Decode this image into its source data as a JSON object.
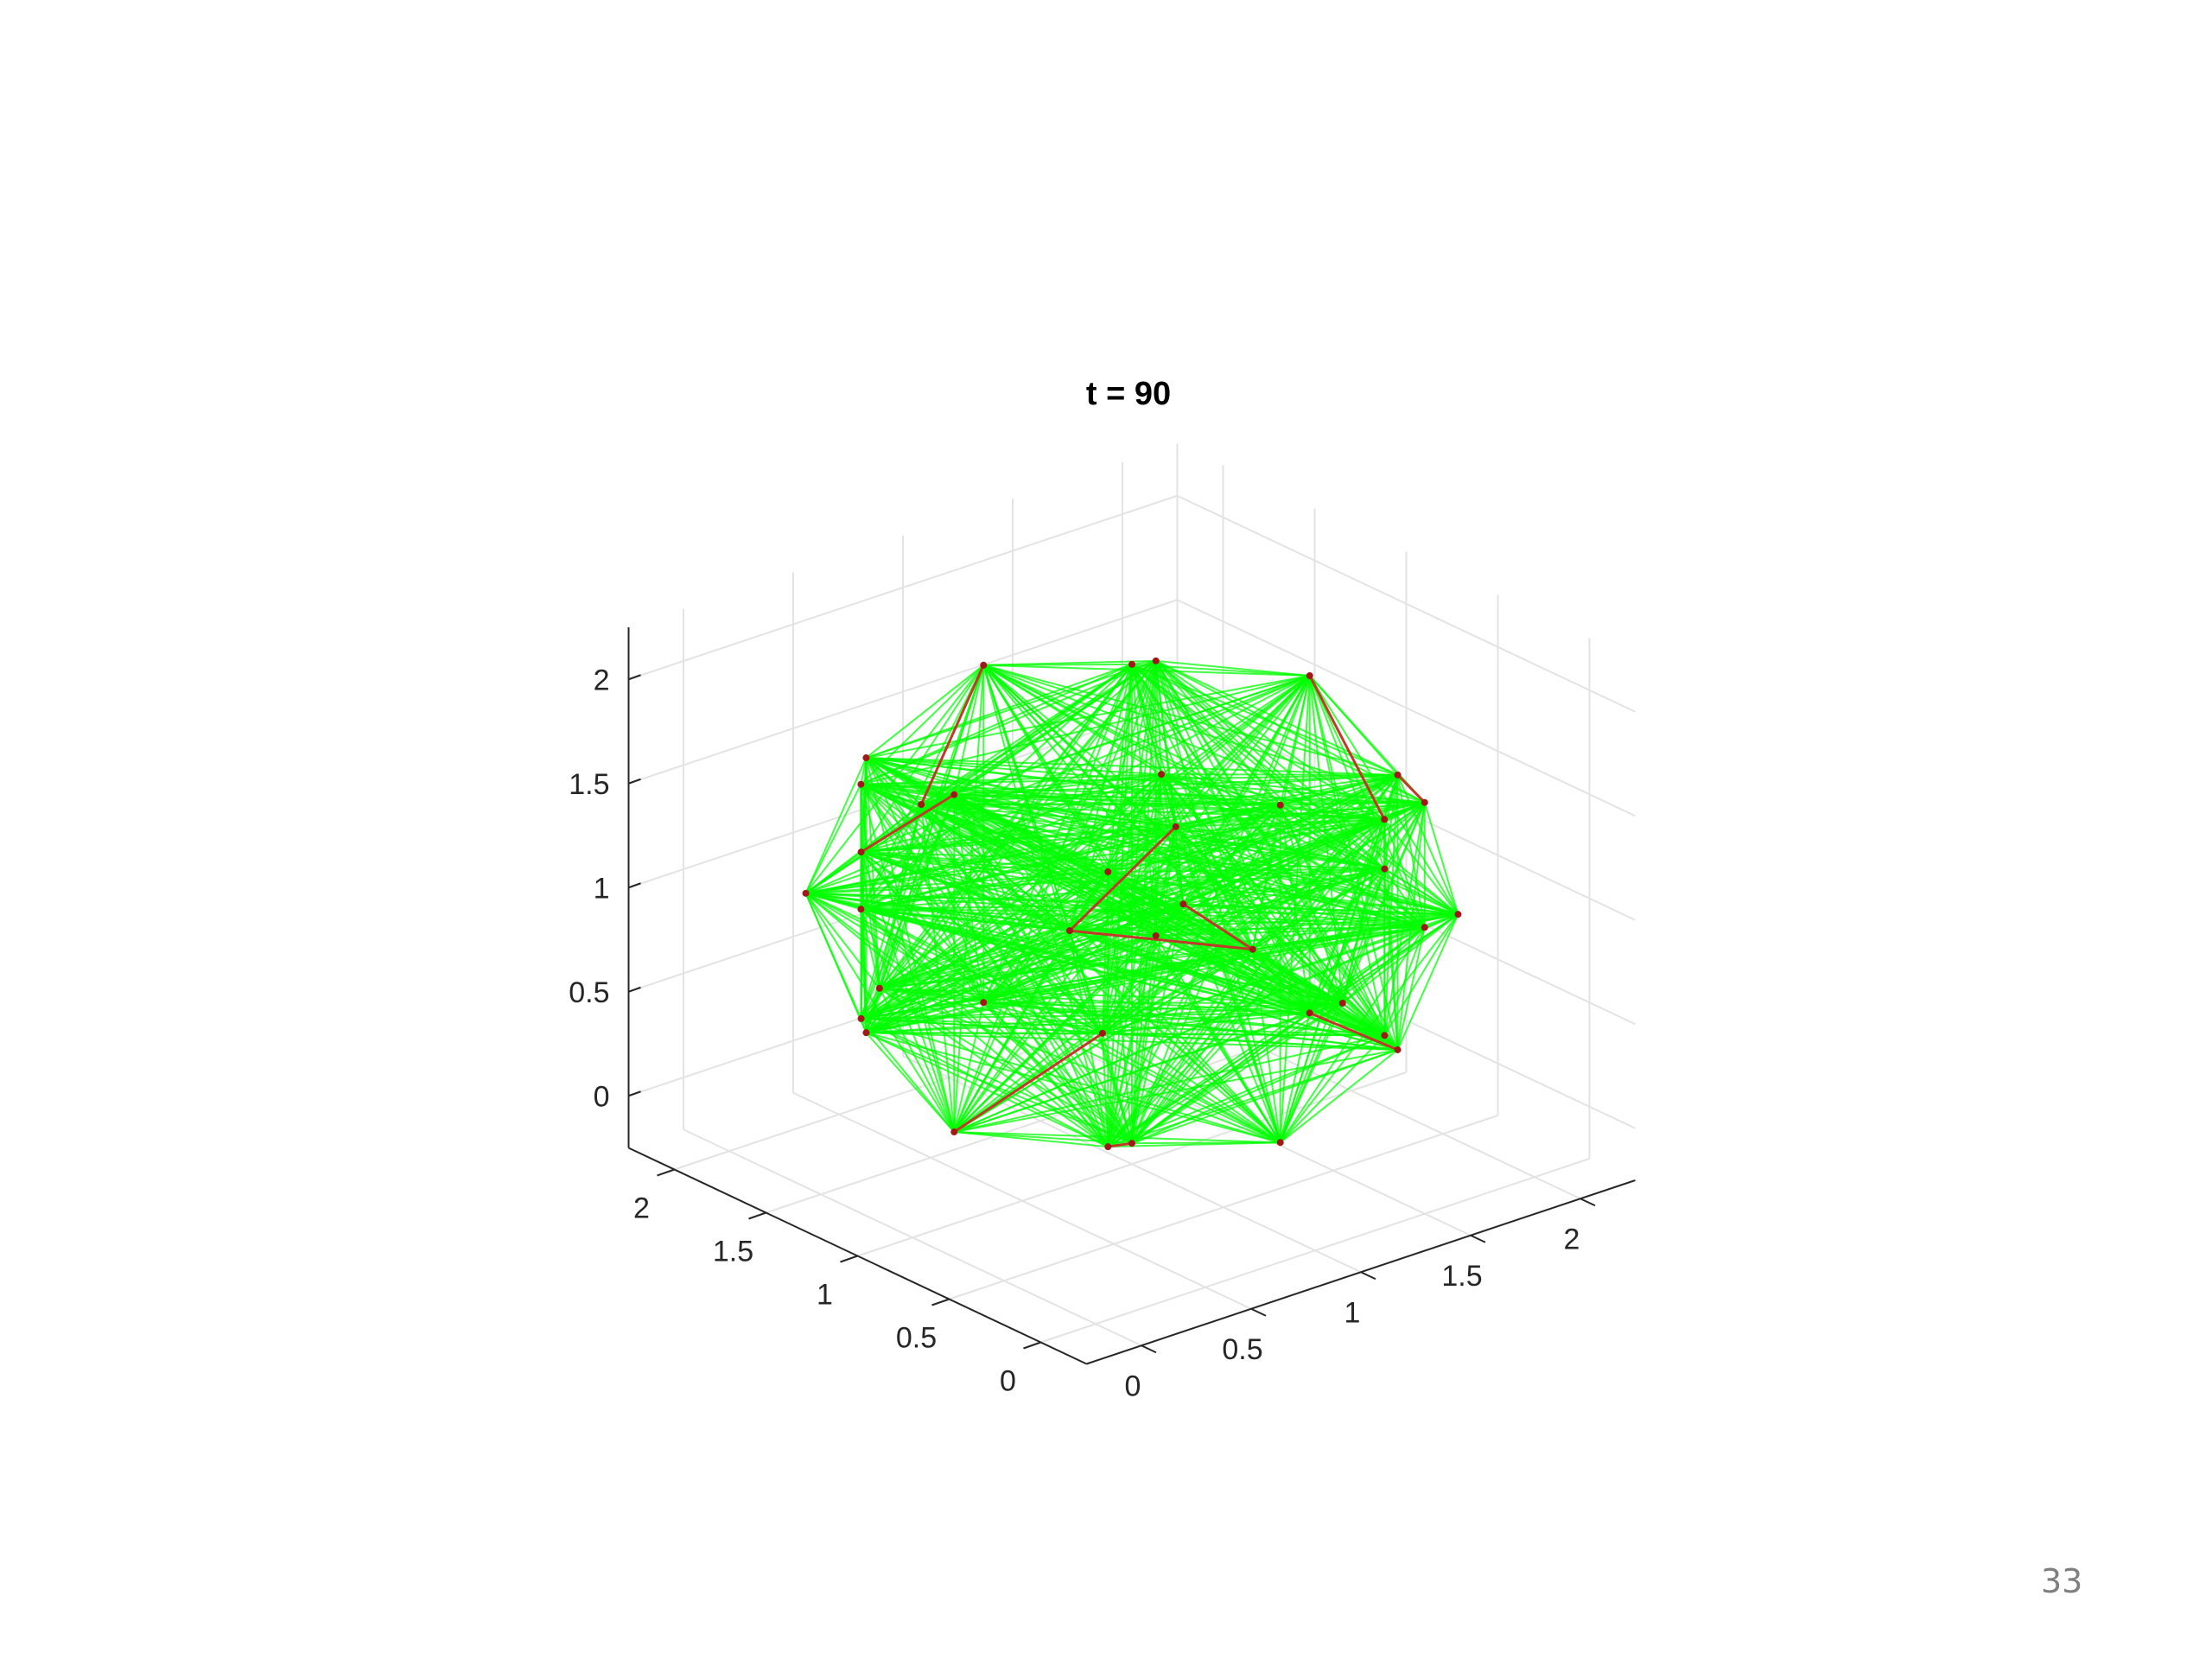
{
  "slide": {
    "page_number": "33"
  },
  "chart_data": {
    "type": "scatter3d-network",
    "title": "t = 90",
    "xlabel": "",
    "ylabel": "",
    "zlabel": "",
    "xlim": [
      -0.25,
      2.25
    ],
    "ylim": [
      -0.25,
      2.25
    ],
    "zlim": [
      -0.25,
      2.25
    ],
    "xticks": [
      0,
      0.5,
      1,
      1.5,
      2
    ],
    "yticks": [
      0,
      0.5,
      1,
      1.5,
      2
    ],
    "zticks": [
      0,
      0.5,
      1,
      1.5,
      2
    ],
    "xtick_labels": [
      "0",
      "0.5",
      "1",
      "1.5",
      "2"
    ],
    "ytick_labels": [
      "0",
      "0.5",
      "1",
      "1.5",
      "2"
    ],
    "ztick_labels": [
      "0",
      "0.5",
      "1",
      "1.5",
      "2"
    ],
    "grid": true,
    "edge_color": "#00ff00",
    "highlight_edge_color": "#c0392b",
    "node_color": "#a01818",
    "nodes": [
      [
        2.15,
        1,
        1
      ],
      [
        -0.15,
        1,
        1
      ],
      [
        1,
        2.15,
        1
      ],
      [
        1,
        -0.15,
        1
      ],
      [
        1,
        1,
        2.15
      ],
      [
        1,
        1,
        -0.15
      ],
      [
        1.81,
        1.81,
        1
      ],
      [
        1.81,
        0.19,
        1
      ],
      [
        0.19,
        1.81,
        1
      ],
      [
        0.19,
        0.19,
        1
      ],
      [
        1.81,
        1,
        1.81
      ],
      [
        1.81,
        1,
        0.19
      ],
      [
        0.19,
        1,
        1.81
      ],
      [
        0.19,
        1,
        0.19
      ],
      [
        1,
        1.81,
        1.81
      ],
      [
        1,
        1.81,
        0.19
      ],
      [
        1,
        0.19,
        1.81
      ],
      [
        1,
        0.19,
        0.19
      ],
      [
        1.66,
        1.66,
        1.66
      ],
      [
        1.66,
        1.66,
        0.34
      ],
      [
        1.66,
        0.34,
        1.66
      ],
      [
        1.66,
        0.34,
        0.34
      ],
      [
        0.34,
        1.66,
        1.66
      ],
      [
        0.34,
        1.66,
        0.34
      ],
      [
        0.34,
        0.34,
        1.66
      ],
      [
        0.34,
        0.34,
        0.34
      ],
      [
        1.4,
        0.1,
        1.4
      ],
      [
        0.1,
        1.4,
        1.4
      ],
      [
        1.4,
        0.1,
        0.6
      ],
      [
        0.1,
        1.4,
        0.6
      ],
      [
        2.0,
        0.6,
        1.3
      ],
      [
        0.6,
        2.0,
        1.3
      ],
      [
        2.0,
        0.6,
        0.7
      ],
      [
        0.6,
        2.0,
        0.7
      ],
      [
        1.2,
        1.0,
        1.3
      ],
      [
        0.8,
        1.1,
        0.9
      ],
      [
        1.3,
        0.7,
        0.8
      ],
      [
        0.9,
        0.6,
        1.2
      ]
    ],
    "highlight_edges": [
      [
        34,
        35
      ],
      [
        35,
        36
      ],
      [
        36,
        37
      ],
      [
        30,
        20
      ],
      [
        27,
        12
      ],
      [
        9,
        13
      ],
      [
        2,
        14
      ],
      [
        11,
        21
      ],
      [
        5,
        25
      ],
      [
        0,
        10
      ]
    ]
  }
}
